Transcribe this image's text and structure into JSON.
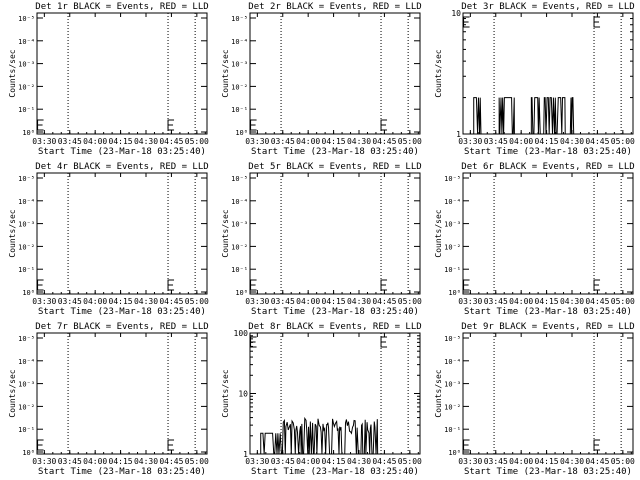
{
  "style": {
    "background": "#ffffff",
    "foreground": "#000000"
  },
  "chart_data": [
    {
      "type": "line",
      "title": "Det 1r BLACK = Events, RED = LLD",
      "xlabel": "Start Time (23-Mar-18 03:25:40)",
      "ylabel": "Counts/sec",
      "x_ticks": [
        "03:30",
        "03:45",
        "04:00",
        "04:15",
        "04:30",
        "04:45",
        "05:00"
      ],
      "y_scale": "log",
      "y_ticks": [
        "10⁰",
        "10⁻¹",
        "10⁻²",
        "10⁻³",
        "10⁻⁴",
        "10⁻⁵"
      ],
      "vlines": [
        "03:44",
        "04:43",
        "04:59"
      ],
      "series": [],
      "error_bars": [
        "03:26",
        "04:43"
      ]
    },
    {
      "type": "line",
      "title": "Det 2r BLACK = Events, RED = LLD",
      "xlabel": "Start Time (23-Mar-18 03:25:40)",
      "ylabel": "Counts/sec",
      "x_ticks": [
        "03:30",
        "03:45",
        "04:00",
        "04:15",
        "04:30",
        "04:45",
        "05:00"
      ],
      "y_scale": "log",
      "y_ticks": [
        "10⁰",
        "10⁻¹",
        "10⁻²",
        "10⁻³",
        "10⁻⁴",
        "10⁻⁵"
      ],
      "vlines": [
        "03:44",
        "04:43",
        "04:59"
      ],
      "series": [],
      "error_bars": [
        "03:26",
        "04:43"
      ]
    },
    {
      "type": "line",
      "title": "Det 3r BLACK = Events, RED = LLD",
      "xlabel": "Start Time (23-Mar-18 03:25:40)",
      "ylabel": "Counts/sec",
      "x_ticks": [
        "03:30",
        "03:45",
        "04:00",
        "04:15",
        "04:30",
        "04:45",
        "05:00"
      ],
      "y_scale": "log",
      "y_range": [
        1,
        10
      ],
      "y_ticks": [
        "10",
        "1"
      ],
      "vlines": [
        "03:44",
        "04:43",
        "04:59"
      ],
      "series": [
        {
          "bursts": [
            [
              "03:32",
              "03:37"
            ],
            [
              "03:47",
              "03:56"
            ],
            [
              "04:06",
              "04:26"
            ],
            [
              "04:29",
              "04:31"
            ]
          ],
          "high": 2,
          "low": 1
        }
      ],
      "error_bars": [
        "03:26",
        "04:43"
      ]
    },
    {
      "type": "line",
      "title": "Det 4r BLACK = Events, RED = LLD",
      "xlabel": "Start Time (23-Mar-18 03:25:40)",
      "ylabel": "Counts/sec",
      "x_ticks": [
        "03:30",
        "03:45",
        "04:00",
        "04:15",
        "04:30",
        "04:45",
        "05:00"
      ],
      "y_scale": "log",
      "y_ticks": [
        "10⁰",
        "10⁻¹",
        "10⁻²",
        "10⁻³",
        "10⁻⁴",
        "10⁻⁵"
      ],
      "vlines": [
        "03:44",
        "04:43",
        "04:59"
      ],
      "series": [],
      "error_bars": [
        "03:26",
        "04:43"
      ]
    },
    {
      "type": "line",
      "title": "Det 5r BLACK = Events, RED = LLD",
      "xlabel": "Start Time (23-Mar-18 03:25:40)",
      "ylabel": "Counts/sec",
      "x_ticks": [
        "03:30",
        "03:45",
        "04:00",
        "04:15",
        "04:30",
        "04:45",
        "05:00"
      ],
      "y_scale": "log",
      "y_ticks": [
        "10⁰",
        "10⁻¹",
        "10⁻²",
        "10⁻³",
        "10⁻⁴",
        "10⁻⁵"
      ],
      "vlines": [
        "03:44",
        "04:43",
        "04:59"
      ],
      "series": [],
      "error_bars": [
        "03:26",
        "04:43"
      ]
    },
    {
      "type": "line",
      "title": "Det 6r BLACK = Events, RED = LLD",
      "xlabel": "Start Time (23-Mar-18 03:25:40)",
      "ylabel": "Counts/sec",
      "x_ticks": [
        "03:30",
        "03:45",
        "04:00",
        "04:15",
        "04:30",
        "04:45",
        "05:00"
      ],
      "y_scale": "log",
      "y_ticks": [
        "10⁰",
        "10⁻¹",
        "10⁻²",
        "10⁻³",
        "10⁻⁴",
        "10⁻⁵"
      ],
      "vlines": [
        "03:44",
        "04:43",
        "04:59"
      ],
      "series": [],
      "error_bars": [
        "03:26",
        "04:43"
      ]
    },
    {
      "type": "line",
      "title": "Det 7r BLACK = Events, RED = LLD",
      "xlabel": "Start Time (23-Mar-18 03:25:40)",
      "ylabel": "Counts/sec",
      "x_ticks": [
        "03:30",
        "03:45",
        "04:00",
        "04:15",
        "04:30",
        "04:45",
        "05:00"
      ],
      "y_scale": "log",
      "y_ticks": [
        "10⁰",
        "10⁻¹",
        "10⁻²",
        "10⁻³",
        "10⁻⁴",
        "10⁻⁵"
      ],
      "vlines": [
        "03:44",
        "04:43",
        "04:59"
      ],
      "series": [],
      "error_bars": [
        "03:26",
        "04:43"
      ]
    },
    {
      "type": "line",
      "title": "Det 8r BLACK = Events, RED = LLD",
      "xlabel": "Start Time (23-Mar-18 03:25:40)",
      "ylabel": "Counts/sec",
      "x_ticks": [
        "03:30",
        "03:45",
        "04:00",
        "04:15",
        "04:30",
        "04:45",
        "05:00"
      ],
      "y_scale": "log",
      "y_range": [
        1,
        100
      ],
      "y_ticks": [
        "100",
        "10",
        "1"
      ],
      "vlines": [
        "03:44",
        "04:43",
        "04:59"
      ],
      "series": [
        {
          "bursts": [
            [
              "03:32",
              "04:41"
            ]
          ],
          "high": 2.2,
          "low": 1,
          "dense_from": "03:44"
        }
      ],
      "error_bars": [
        "03:26",
        "04:43"
      ]
    },
    {
      "type": "line",
      "title": "Det 9r BLACK = Events, RED = LLD",
      "xlabel": "Start Time (23-Mar-18 03:25:40)",
      "ylabel": "Counts/sec",
      "x_ticks": [
        "03:30",
        "03:45",
        "04:00",
        "04:15",
        "04:30",
        "04:45",
        "05:00"
      ],
      "y_scale": "log",
      "y_ticks": [
        "10⁰",
        "10⁻¹",
        "10⁻²",
        "10⁻³",
        "10⁻⁴",
        "10⁻⁵"
      ],
      "vlines": [
        "03:44",
        "04:43",
        "04:59"
      ],
      "series": [],
      "error_bars": [
        "03:26",
        "04:43"
      ]
    }
  ]
}
